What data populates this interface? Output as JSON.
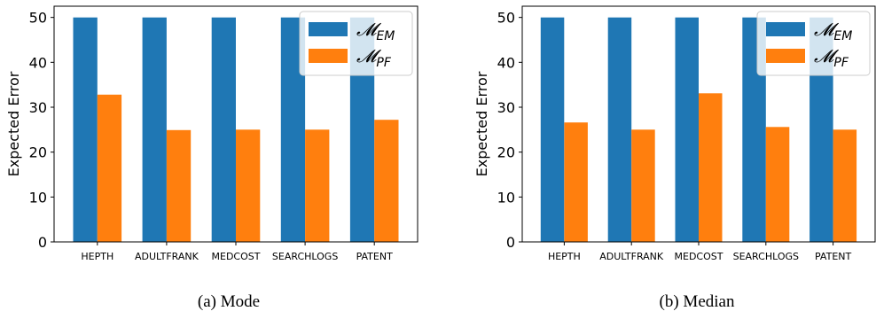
{
  "chart_data": [
    {
      "type": "bar",
      "categories": [
        "HEPTH",
        "ADULTFRANK",
        "MEDCOST",
        "SEARCHLOGS",
        "PATENT"
      ],
      "series": [
        {
          "name": "𝓜EM",
          "label_main": "𝓜",
          "label_sub": "EM",
          "color": "#1f77b4",
          "values": [
            50,
            50,
            50,
            50,
            50
          ]
        },
        {
          "name": "𝓜PF",
          "label_main": "𝓜",
          "label_sub": "PF",
          "color": "#ff7f0e",
          "values": [
            32.8,
            24.9,
            25.0,
            25.0,
            27.2
          ]
        }
      ],
      "xlabel": "",
      "ylabel": "Expected Error",
      "ylim": [
        0,
        52.5
      ],
      "yticks": [
        0,
        10,
        20,
        30,
        40,
        50
      ],
      "legend": "top-right",
      "grid": false,
      "caption": "(a) Mode"
    },
    {
      "type": "bar",
      "categories": [
        "HEPTH",
        "ADULTFRANK",
        "MEDCOST",
        "SEARCHLOGS",
        "PATENT"
      ],
      "series": [
        {
          "name": "𝓜EM",
          "label_main": "𝓜",
          "label_sub": "EM",
          "color": "#1f77b4",
          "values": [
            50,
            50,
            50,
            50,
            50
          ]
        },
        {
          "name": "𝓜PF",
          "label_main": "𝓜",
          "label_sub": "PF",
          "color": "#ff7f0e",
          "values": [
            26.6,
            25.0,
            33.1,
            25.6,
            25.0
          ]
        }
      ],
      "xlabel": "",
      "ylabel": "Expected Error",
      "ylim": [
        0,
        52.5
      ],
      "yticks": [
        0,
        10,
        20,
        30,
        40,
        50
      ],
      "legend": "top-right",
      "grid": false,
      "caption": "(b) Median"
    }
  ]
}
